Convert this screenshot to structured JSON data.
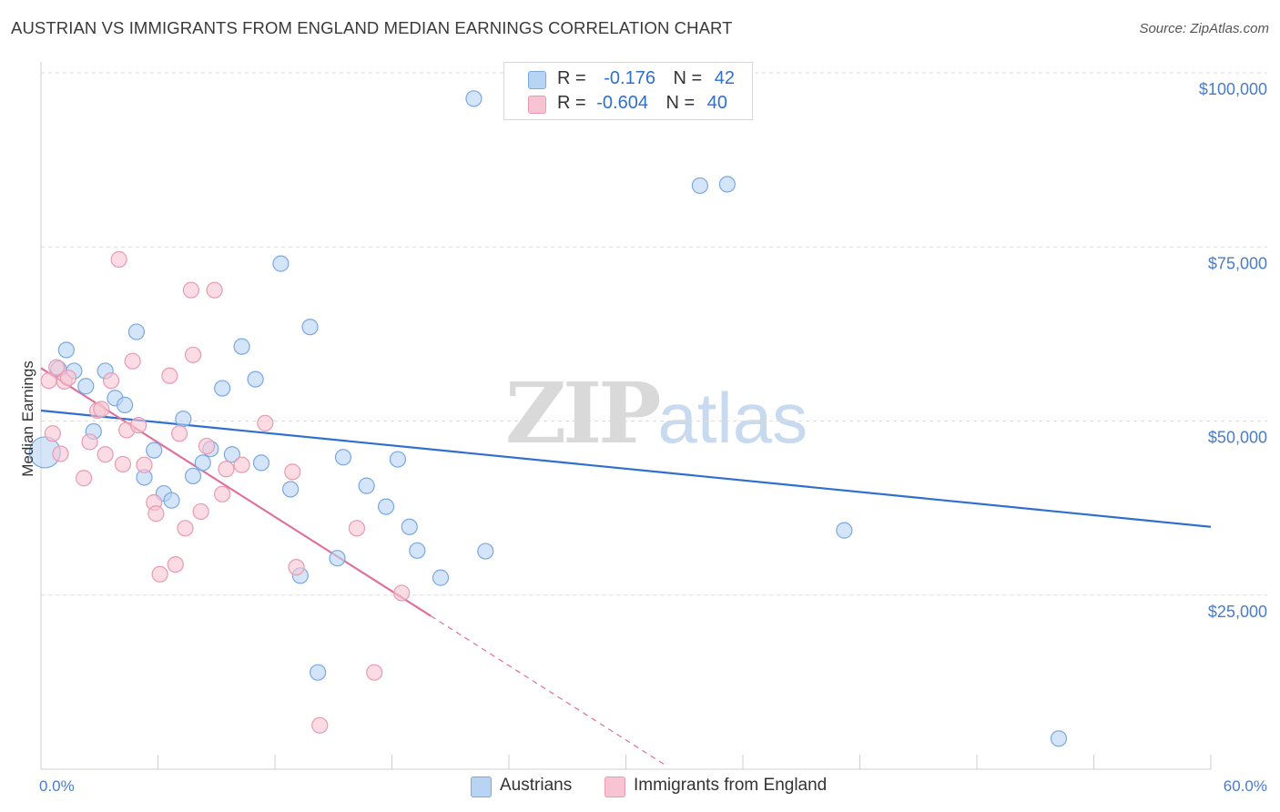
{
  "title": "AUSTRIAN VS IMMIGRANTS FROM ENGLAND MEDIAN EARNINGS CORRELATION CHART",
  "source": "Source: ZipAtlas.com",
  "watermark": {
    "zip": "ZIP",
    "atlas": "atlas"
  },
  "legend_top": {
    "rows": [
      {
        "r_label": "R =",
        "r_value": "-0.176",
        "n_label": "N =",
        "n_value": "42"
      },
      {
        "r_label": "R =",
        "r_value": "-0.604",
        "n_label": "N =",
        "n_value": "40"
      }
    ]
  },
  "legend_bottom": {
    "items": [
      "Austrians",
      "Immigrants from England"
    ]
  },
  "colors": {
    "blue_fill": "#b8d4f5",
    "blue_stroke": "#7aa8e0",
    "blue_line": "#2f6fd0",
    "pink_fill": "#f8c4d4",
    "pink_stroke": "#e89ab2",
    "pink_line": "#e0709a",
    "grid": "#dcdcdc",
    "tick_text": "#4a7cc9"
  },
  "chart_data": {
    "type": "scatter",
    "title": "AUSTRIAN VS IMMIGRANTS FROM ENGLAND MEDIAN EARNINGS CORRELATION CHART",
    "xlabel": "",
    "ylabel": "Median Earnings",
    "xlim": [
      0,
      60
    ],
    "ylim": [
      0,
      100000
    ],
    "x_tick_labels": [
      "0.0%",
      "60.0%"
    ],
    "y_tick_labels": [
      "$25,000",
      "$50,000",
      "$75,000",
      "$100,000"
    ],
    "y_ticks": [
      25000,
      50000,
      75000,
      100000
    ],
    "grid": true,
    "legend_position": "top-center",
    "series": [
      {
        "name": "Austrians",
        "r": -0.176,
        "n": 42,
        "trend": {
          "x0": 0,
          "y0": 51500,
          "x1": 60,
          "y1": 34800
        },
        "points": [
          [
            0.2,
            45500
          ],
          [
            0.9,
            57500
          ],
          [
            1.3,
            60200
          ],
          [
            1.7,
            57200
          ],
          [
            2.3,
            55000
          ],
          [
            2.7,
            48500
          ],
          [
            3.3,
            57200
          ],
          [
            3.8,
            53300
          ],
          [
            4.3,
            52300
          ],
          [
            4.9,
            62800
          ],
          [
            5.3,
            41900
          ],
          [
            5.8,
            45800
          ],
          [
            6.3,
            39600
          ],
          [
            6.7,
            38600
          ],
          [
            7.3,
            50300
          ],
          [
            7.8,
            42100
          ],
          [
            8.3,
            44000
          ],
          [
            8.7,
            46000
          ],
          [
            9.3,
            54700
          ],
          [
            9.8,
            45200
          ],
          [
            10.3,
            60700
          ],
          [
            11.0,
            56000
          ],
          [
            11.3,
            44000
          ],
          [
            12.3,
            72600
          ],
          [
            12.8,
            40200
          ],
          [
            13.3,
            27800
          ],
          [
            13.8,
            63500
          ],
          [
            14.2,
            13900
          ],
          [
            15.2,
            30300
          ],
          [
            15.5,
            44800
          ],
          [
            16.7,
            40700
          ],
          [
            17.7,
            37700
          ],
          [
            18.3,
            44500
          ],
          [
            18.9,
            34800
          ],
          [
            19.3,
            31400
          ],
          [
            20.5,
            27500
          ],
          [
            22.2,
            96300
          ],
          [
            22.8,
            31300
          ],
          [
            33.8,
            83800
          ],
          [
            35.2,
            84000
          ],
          [
            41.2,
            34300
          ],
          [
            52.2,
            4400
          ]
        ]
      },
      {
        "name": "Immigrants from England",
        "r": -0.604,
        "n": 40,
        "trend": {
          "x0": 0,
          "y0": 57600,
          "x1": 20,
          "y1": 22000,
          "dash_to_x": 32.0
        },
        "points": [
          [
            0.4,
            55800
          ],
          [
            0.8,
            57700
          ],
          [
            1.2,
            55700
          ],
          [
            1.4,
            56200
          ],
          [
            2.2,
            41800
          ],
          [
            2.5,
            47000
          ],
          [
            2.9,
            51500
          ],
          [
            3.1,
            51700
          ],
          [
            3.6,
            55800
          ],
          [
            4.0,
            73200
          ],
          [
            4.2,
            43800
          ],
          [
            4.4,
            48700
          ],
          [
            4.7,
            58600
          ],
          [
            5.0,
            49400
          ],
          [
            5.3,
            43700
          ],
          [
            5.8,
            38300
          ],
          [
            5.9,
            36700
          ],
          [
            6.1,
            28000
          ],
          [
            6.6,
            56500
          ],
          [
            6.9,
            29400
          ],
          [
            7.1,
            48200
          ],
          [
            7.4,
            34600
          ],
          [
            7.7,
            68800
          ],
          [
            7.8,
            59500
          ],
          [
            8.2,
            37000
          ],
          [
            8.5,
            46400
          ],
          [
            8.9,
            68800
          ],
          [
            9.3,
            39500
          ],
          [
            9.5,
            43100
          ],
          [
            10.3,
            43700
          ],
          [
            11.5,
            49700
          ],
          [
            12.9,
            42700
          ],
          [
            13.1,
            29000
          ],
          [
            14.3,
            6300
          ],
          [
            16.2,
            34600
          ],
          [
            17.1,
            13900
          ],
          [
            18.5,
            25300
          ],
          [
            1.0,
            45300
          ],
          [
            0.6,
            48200
          ],
          [
            3.3,
            45200
          ]
        ]
      }
    ]
  }
}
